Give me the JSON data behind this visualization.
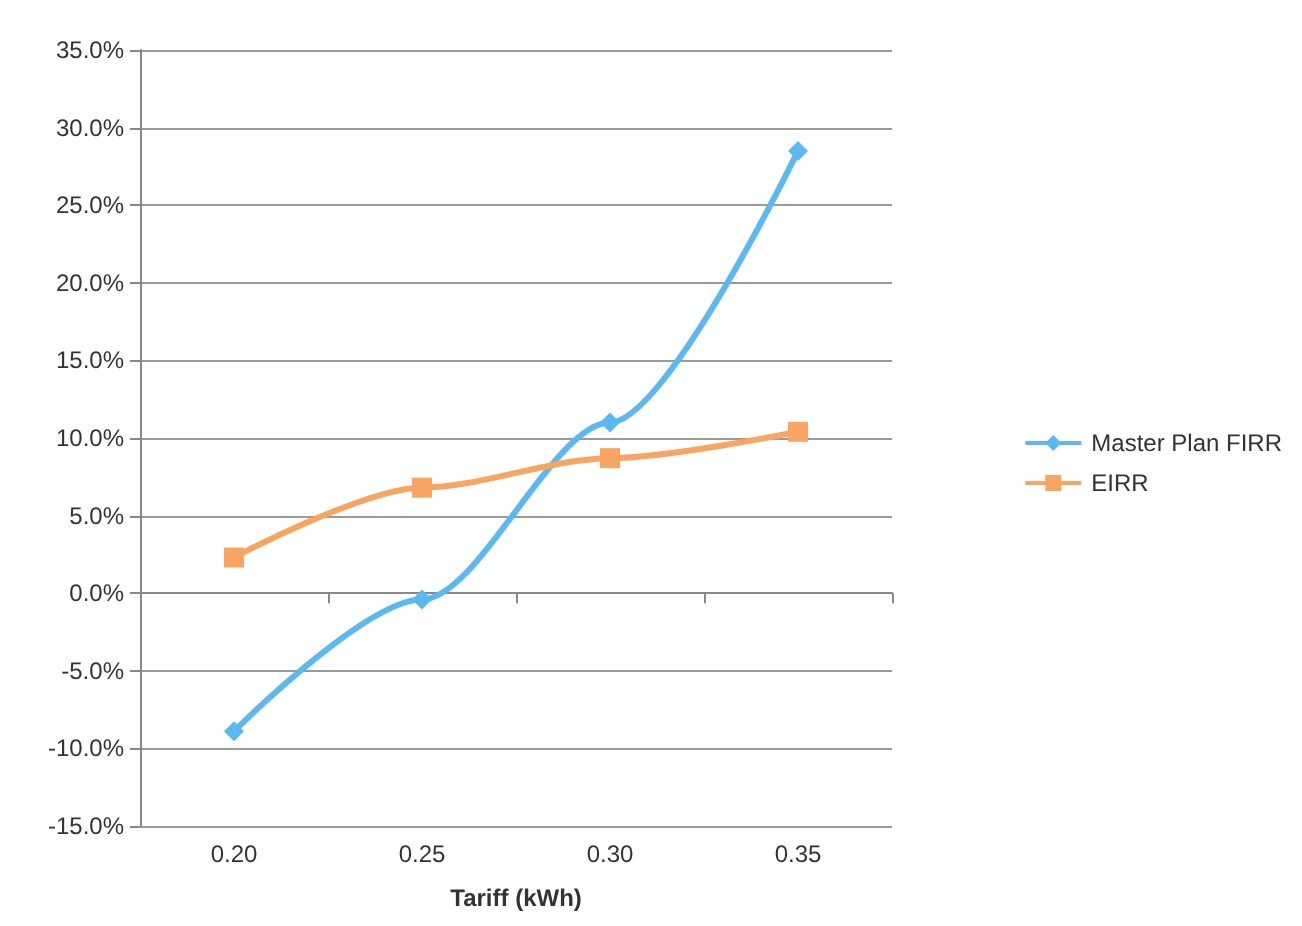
{
  "chart_data": {
    "type": "line",
    "xlabel": "Tariff (kWh)",
    "categories": [
      "0.20",
      "0.25",
      "0.30",
      "0.35"
    ],
    "series": [
      {
        "name": "Master Plan FIRR",
        "color": "#5bb8f0",
        "values": [
          -8.9,
          -0.4,
          11.0,
          28.5
        ],
        "marker": "diamond"
      },
      {
        "name": "EIRR",
        "color": "#f7a561",
        "values": [
          2.3,
          6.8,
          8.7,
          10.4
        ],
        "marker": "square"
      }
    ],
    "ylim": [
      -15,
      35
    ],
    "yticks": [
      {
        "value": -15,
        "label": "-15.0%"
      },
      {
        "value": -10,
        "label": "-10.0%"
      },
      {
        "value": -5,
        "label": "-5.0%"
      },
      {
        "value": 0,
        "label": "0.0%"
      },
      {
        "value": 5,
        "label": "5.0%"
      },
      {
        "value": 10,
        "label": "10.0%"
      },
      {
        "value": 15,
        "label": "15.0%"
      },
      {
        "value": 20,
        "label": "20.0%"
      },
      {
        "value": 25,
        "label": "25.0%"
      },
      {
        "value": 30,
        "label": "30.0%"
      },
      {
        "value": 35,
        "label": "35.0%"
      }
    ],
    "grid": "y",
    "legend": "right"
  }
}
